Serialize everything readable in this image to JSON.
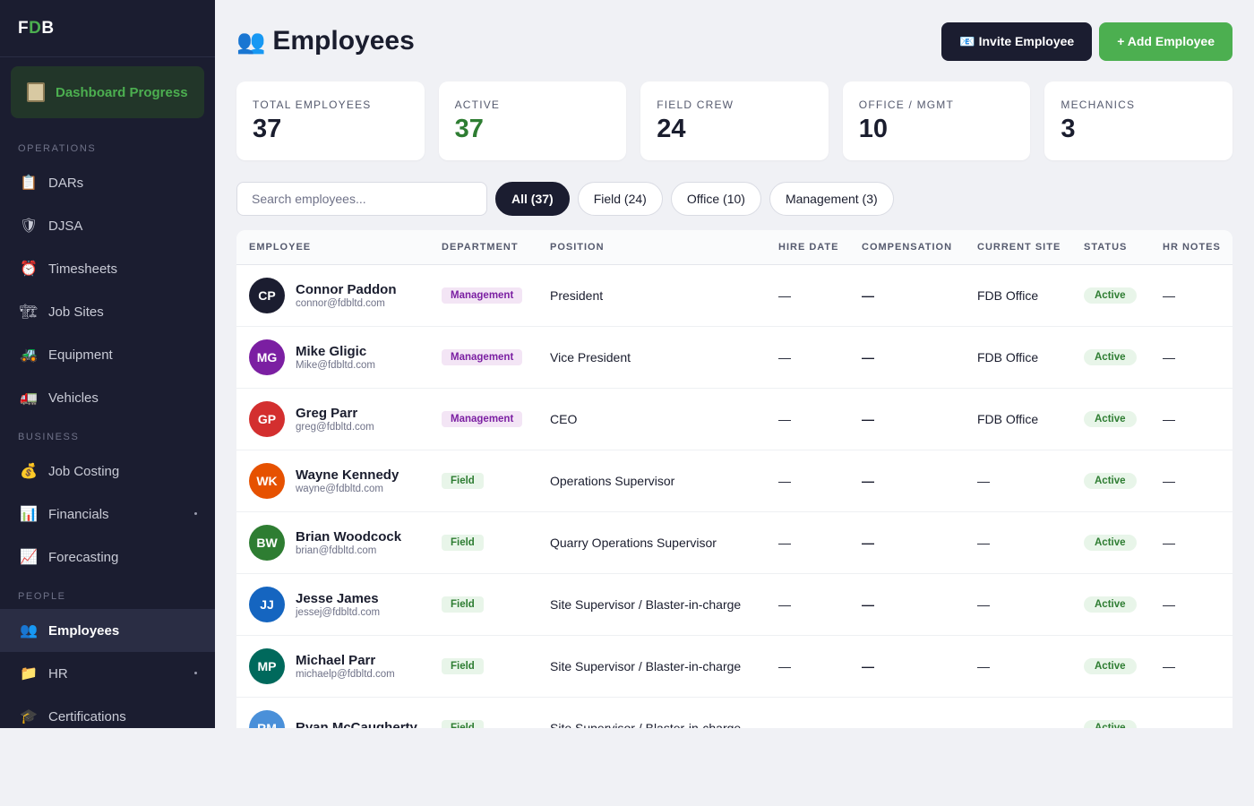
{
  "sidebar": {
    "logo_f": "F",
    "logo_d": "D",
    "logo_b": "B",
    "dashboard_label": "Dashboard Progress",
    "sections": {
      "operations": "OPERATIONS",
      "business": "BUSINESS",
      "people": "PEOPLE"
    },
    "items": [
      {
        "label": "DARs",
        "icon": "clipboard-icon",
        "glyph": "📋"
      },
      {
        "label": "DJSA",
        "icon": "shield-icon",
        "glyph": "🛡"
      },
      {
        "label": "Timesheets",
        "icon": "alarm-clock-icon",
        "glyph": "⏰"
      },
      {
        "label": "Job Sites",
        "icon": "crane-icon",
        "glyph": "🏗"
      },
      {
        "label": "Equipment",
        "icon": "tractor-icon",
        "glyph": "🚜"
      },
      {
        "label": "Vehicles",
        "icon": "truck-icon",
        "glyph": "🚛"
      },
      {
        "label": "Job Costing",
        "icon": "money-bag-icon",
        "glyph": "💰"
      },
      {
        "label": "Financials",
        "icon": "bar-chart-icon",
        "glyph": "📊"
      },
      {
        "label": "Forecasting",
        "icon": "trend-chart-icon",
        "glyph": "📈"
      },
      {
        "label": "Employees",
        "icon": "people-icon",
        "glyph": "👥"
      },
      {
        "label": "HR",
        "icon": "folder-icon",
        "glyph": "📁"
      },
      {
        "label": "Certifications",
        "icon": "graduation-cap-icon",
        "glyph": "🎓"
      }
    ]
  },
  "header": {
    "title": "Employees",
    "title_glyph": "👥",
    "invite_label": "📧 Invite Employee",
    "add_label": "+ Add Employee"
  },
  "stats": [
    {
      "label": "TOTAL EMPLOYEES",
      "value": "37"
    },
    {
      "label": "ACTIVE",
      "value": "37"
    },
    {
      "label": "FIELD CREW",
      "value": "24"
    },
    {
      "label": "OFFICE / MGMT",
      "value": "10"
    },
    {
      "label": "MECHANICS",
      "value": "3"
    }
  ],
  "search": {
    "placeholder": "Search employees..."
  },
  "filters": [
    "All (37)",
    "Field (24)",
    "Office (10)",
    "Management (3)"
  ],
  "table": {
    "columns": [
      "EMPLOYEE",
      "DEPARTMENT",
      "POSITION",
      "HIRE DATE",
      "COMPENSATION",
      "CURRENT SITE",
      "STATUS",
      "HR NOTES"
    ],
    "rows": [
      {
        "initials": "CP",
        "color": "#1b1d30",
        "name": "Connor Paddon",
        "email": "connor@fdbltd.com",
        "dept": "Management",
        "position": "President",
        "hire": "—",
        "comp": "—",
        "site": "FDB Office",
        "status": "Active",
        "notes": "—"
      },
      {
        "initials": "MG",
        "color": "#7b1fa2",
        "name": "Mike Gligic",
        "email": "Mike@fdbltd.com",
        "dept": "Management",
        "position": "Vice President",
        "hire": "—",
        "comp": "—",
        "site": "FDB Office",
        "status": "Active",
        "notes": "—"
      },
      {
        "initials": "GP",
        "color": "#d32f2f",
        "name": "Greg Parr",
        "email": "greg@fdbltd.com",
        "dept": "Management",
        "position": "CEO",
        "hire": "—",
        "comp": "—",
        "site": "FDB Office",
        "status": "Active",
        "notes": "—"
      },
      {
        "initials": "WK",
        "color": "#e65100",
        "name": "Wayne Kennedy",
        "email": "wayne@fdbltd.com",
        "dept": "Field",
        "position": "Operations Supervisor",
        "hire": "—",
        "comp": "—",
        "site": "—",
        "status": "Active",
        "notes": "—"
      },
      {
        "initials": "BW",
        "color": "#2e7d32",
        "name": "Brian Woodcock",
        "email": "brian@fdbltd.com",
        "dept": "Field",
        "position": "Quarry Operations Supervisor",
        "hire": "—",
        "comp": "—",
        "site": "—",
        "status": "Active",
        "notes": "—"
      },
      {
        "initials": "JJ",
        "color": "#1565c0",
        "name": "Jesse James",
        "email": "jessej@fdbltd.com",
        "dept": "Field",
        "position": "Site Supervisor / Blaster-in-charge",
        "hire": "—",
        "comp": "—",
        "site": "—",
        "status": "Active",
        "notes": "—"
      },
      {
        "initials": "MP",
        "color": "#00695c",
        "name": "Michael Parr",
        "email": "michaelp@fdbltd.com",
        "dept": "Field",
        "position": "Site Supervisor / Blaster-in-charge",
        "hire": "—",
        "comp": "—",
        "site": "—",
        "status": "Active",
        "notes": "—"
      },
      {
        "initials": "RM",
        "color": "#4a90d9",
        "name": "Ryan McCaugherty",
        "email": "",
        "dept": "Field",
        "position": "Site Supervisor / Blaster-in-charge",
        "hire": "—",
        "comp": "—",
        "site": "—",
        "status": "Active",
        "notes": "—"
      }
    ]
  }
}
